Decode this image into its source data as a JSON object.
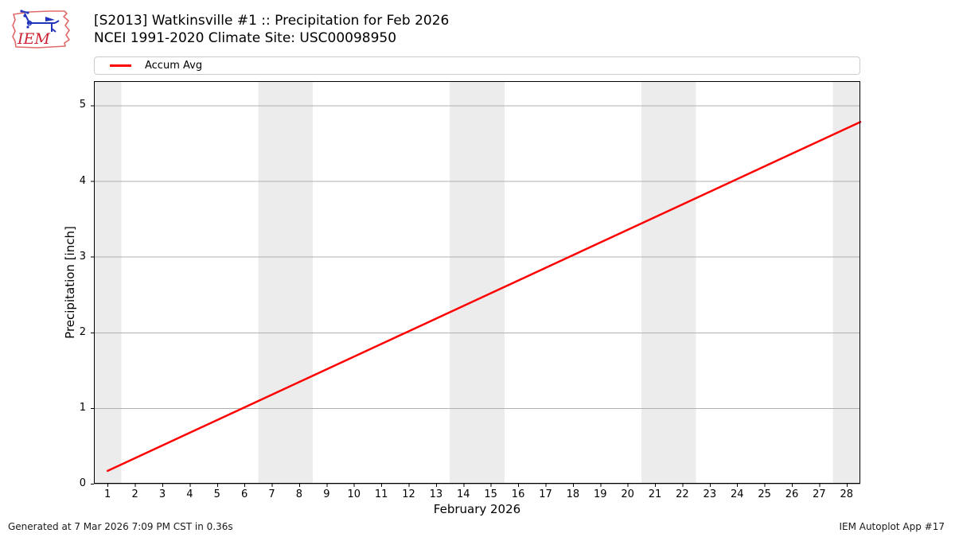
{
  "header": {
    "title": "[S2013] Watkinsville #1 :: Precipitation for Feb 2026",
    "subtitle": "NCEI 1991-2020 Climate Site: USC00098950",
    "logo_text": "IEM"
  },
  "legend": {
    "items": [
      {
        "label": "Accum Avg",
        "color": "#ff0000"
      }
    ]
  },
  "chart_data": {
    "type": "line",
    "title": "[S2013] Watkinsville #1 :: Precipitation for Feb 2026",
    "subtitle": "NCEI 1991-2020 Climate Site: USC00098950",
    "xlabel": "February 2026",
    "ylabel": "Precipitation [inch]",
    "x": [
      1,
      2,
      3,
      4,
      5,
      6,
      7,
      8,
      9,
      10,
      11,
      12,
      13,
      14,
      15,
      16,
      17,
      18,
      19,
      20,
      21,
      22,
      23,
      24,
      25,
      26,
      27,
      28
    ],
    "series": [
      {
        "name": "Accum Avg",
        "color": "#ff0000",
        "values": [
          0.17,
          0.34,
          0.51,
          0.68,
          0.85,
          1.02,
          1.19,
          1.36,
          1.53,
          1.7,
          1.87,
          2.04,
          2.21,
          2.39,
          2.56,
          2.73,
          2.9,
          3.07,
          3.24,
          3.41,
          3.58,
          3.75,
          3.92,
          4.09,
          4.26,
          4.43,
          4.6,
          4.77
        ]
      }
    ],
    "line_draw": {
      "x1": 1,
      "y1": 0.17,
      "x2": 28.5,
      "y2": 4.78
    },
    "xlim": [
      0.5,
      28.5
    ],
    "ylim": [
      0,
      5.32
    ],
    "yticks": [
      0,
      1,
      2,
      3,
      4,
      5
    ],
    "grid": "horizontal",
    "legend_position": "top",
    "weekend_bands": [
      [
        0.5,
        1.5
      ],
      [
        6.5,
        8.5
      ],
      [
        13.5,
        15.5
      ],
      [
        20.5,
        22.5
      ],
      [
        27.5,
        28.5
      ]
    ],
    "colors": {
      "line": "#ff0000",
      "grid": "#b0b0b0",
      "band": "#ececec",
      "spine": "#000000",
      "legend_border": "#cccccc",
      "logo_outline": "#e06a6a",
      "logo_instrument": "#2233bb",
      "logo_text": "#cc2233"
    }
  },
  "footer": {
    "left": "Generated at 7 Mar 2026 7:09 PM CST in 0.36s",
    "right": "IEM Autoplot App #17"
  }
}
